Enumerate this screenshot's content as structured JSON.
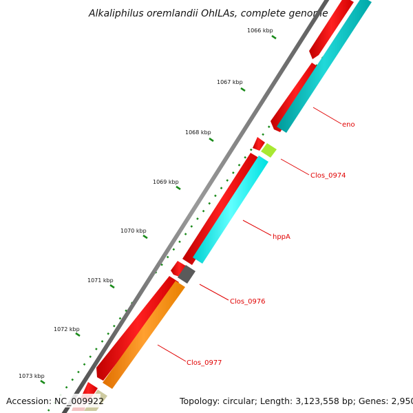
{
  "title": "Alkaliphilus oremlandii OhILAs, complete genome",
  "footer": {
    "accession": "Accession: NC_009922",
    "info": "Topology: circular; Length: 3,123,558 bp; Genes: 2,950"
  },
  "ticks": [
    "1066 kbp",
    "1067 kbp",
    "1068 kbp",
    "1069 kbp",
    "1070 kbp",
    "1071 kbp",
    "1072 kbp",
    "1073 kbp"
  ],
  "gene_labels": [
    "eno",
    "Clos_0974",
    "hppA",
    "Clos_0976",
    "Clos_0977"
  ],
  "colors": {
    "cds": "#ff0000",
    "eno": "#00c8c8",
    "clos_0974": "#a8e832",
    "hppa": "#00ffff",
    "clos_0976": "#5a5a5a",
    "clos_0977": "#ff8c00",
    "tick_marks": "#1a8a1a",
    "backbone": "#7a7a7a",
    "label_text": "#e00000"
  }
}
